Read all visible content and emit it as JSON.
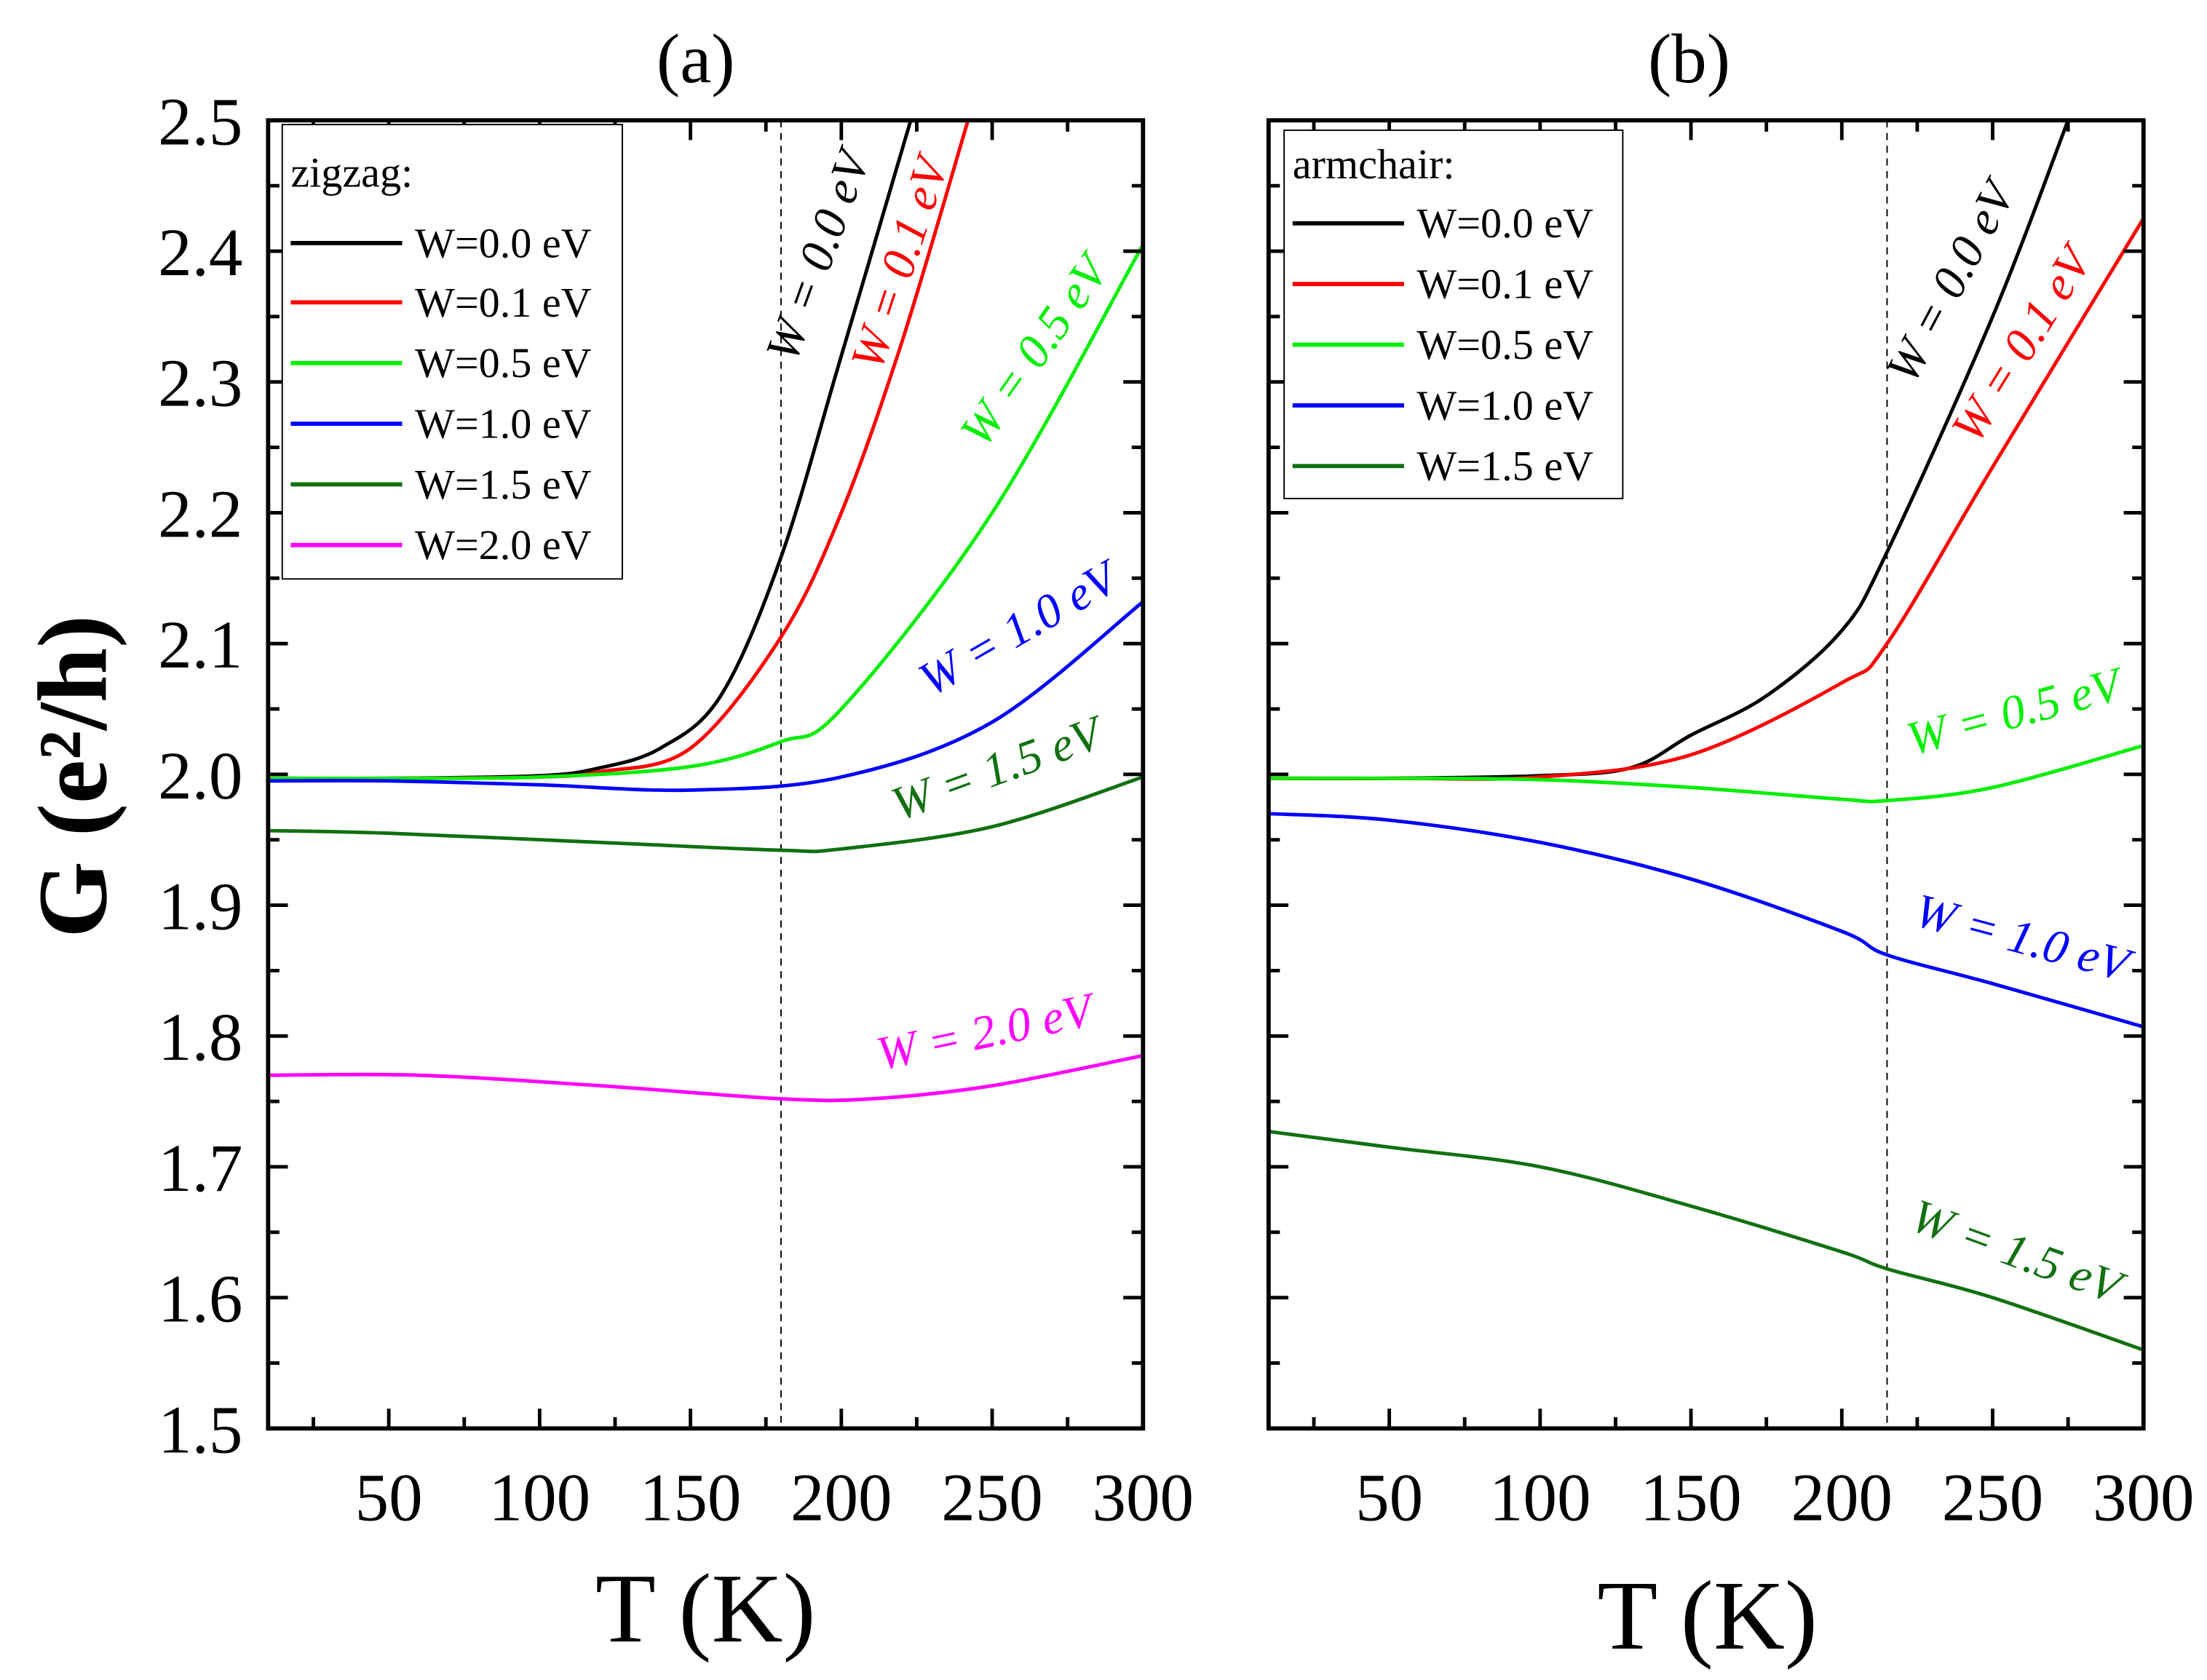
{
  "chart_data": [
    {
      "type": "line",
      "title": "(a)",
      "xlabel": "T (K)",
      "ylabel": "G (e²/h)",
      "xlim": [
        10,
        300
      ],
      "ylim": [
        1.5,
        2.5
      ],
      "xticks": [
        "50",
        "100",
        "150",
        "200",
        "250",
        "300"
      ],
      "yticks": [
        "1.5",
        "1.6",
        "1.7",
        "1.8",
        "1.9",
        "2.0",
        "2.1",
        "2.2",
        "2.3",
        "2.4",
        "2.5"
      ],
      "grid": false,
      "vline_T": 180,
      "legend": {
        "title": "zigzag:",
        "placement": "top-left"
      },
      "series": [
        {
          "name": "W=0.0 eV",
          "annotation": "W = 0.0 eV",
          "color": "#000000",
          "x": [
            10,
            50,
            100,
            120,
            140,
            160,
            180,
            200,
            223
          ],
          "y": [
            1.997,
            1.997,
            1.999,
            2.005,
            2.02,
            2.06,
            2.166,
            2.32,
            2.5
          ]
        },
        {
          "name": "W=0.1 eV",
          "annotation": "W = 0.1 eV",
          "color": "#ff0000",
          "x": [
            10,
            50,
            100,
            120,
            150,
            180,
            200,
            220,
            242
          ],
          "y": [
            1.997,
            1.997,
            1.998,
            2.002,
            2.02,
            2.105,
            2.2,
            2.33,
            2.5
          ]
        },
        {
          "name": "W=0.5 eV",
          "annotation": "W = 0.5 eV",
          "color": "#00ee00",
          "x": [
            10,
            50,
            100,
            150,
            180,
            200,
            250,
            300
          ],
          "y": [
            1.997,
            1.997,
            1.998,
            2.006,
            2.025,
            2.05,
            2.2,
            2.405
          ]
        },
        {
          "name": "W=1.0 eV",
          "annotation": "W = 1.0 eV",
          "color": "#0000ff",
          "x": [
            10,
            50,
            100,
            150,
            200,
            250,
            300
          ],
          "y": [
            1.995,
            1.995,
            1.992,
            1.988,
            1.998,
            2.04,
            2.132
          ]
        },
        {
          "name": "W=1.5 eV",
          "annotation": "W = 1.5 eV",
          "color": "#107010",
          "x": [
            10,
            50,
            120,
            180,
            200,
            250,
            300
          ],
          "y": [
            1.957,
            1.955,
            1.948,
            1.942,
            1.943,
            1.96,
            1.998
          ]
        },
        {
          "name": "W=2.0 eV",
          "annotation": "W = 2.0 eV",
          "color": "#ff00ff",
          "x": [
            10,
            60,
            120,
            180,
            210,
            250,
            300
          ],
          "y": [
            1.77,
            1.77,
            1.762,
            1.752,
            1.752,
            1.762,
            1.785
          ]
        }
      ]
    },
    {
      "type": "line",
      "title": "(b)",
      "xlabel": "T (K)",
      "ylabel": "",
      "xlim": [
        10,
        300
      ],
      "ylim": [
        1.5,
        2.5
      ],
      "xticks": [
        "50",
        "100",
        "150",
        "200",
        "250",
        "300"
      ],
      "grid": false,
      "vline_T": 215,
      "legend": {
        "title": "armchair:",
        "placement": "top-left"
      },
      "series": [
        {
          "name": "W=0.0 eV",
          "annotation": "W = 0.0 eV",
          "color": "#000000",
          "x": [
            10,
            50,
            100,
            130,
            150,
            175,
            200,
            215,
            250,
            275
          ],
          "y": [
            1.997,
            1.997,
            1.999,
            2.005,
            2.03,
            2.06,
            2.11,
            2.17,
            2.35,
            2.5
          ]
        },
        {
          "name": "W=0.1 eV",
          "annotation": "W = 0.1 eV",
          "color": "#ff0000",
          "x": [
            10,
            50,
            100,
            150,
            200,
            215,
            250,
            300
          ],
          "y": [
            1.997,
            1.997,
            1.998,
            2.015,
            2.07,
            2.1,
            2.235,
            2.425
          ]
        },
        {
          "name": "W=0.5 eV",
          "annotation": "W = 0.5 eV",
          "color": "#00ee00",
          "x": [
            10,
            50,
            100,
            150,
            200,
            215,
            250,
            300
          ],
          "y": [
            1.997,
            1.997,
            1.996,
            1.99,
            1.981,
            1.98,
            1.99,
            2.022
          ]
        },
        {
          "name": "W=1.0 eV",
          "annotation": "W = 1.0 eV",
          "color": "#0000ff",
          "x": [
            10,
            50,
            100,
            150,
            200,
            215,
            250,
            300
          ],
          "y": [
            1.97,
            1.965,
            1.948,
            1.92,
            1.88,
            1.862,
            1.84,
            1.807
          ]
        },
        {
          "name": "W=1.5 eV",
          "annotation": "W = 1.5 eV",
          "color": "#107010",
          "x": [
            10,
            50,
            100,
            150,
            200,
            215,
            250,
            300
          ],
          "y": [
            1.727,
            1.715,
            1.7,
            1.67,
            1.635,
            1.622,
            1.6,
            1.56
          ]
        }
      ]
    }
  ]
}
